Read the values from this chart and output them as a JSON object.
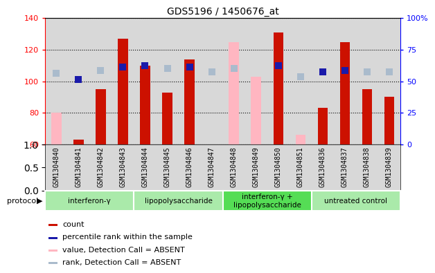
{
  "title": "GDS5196 / 1450676_at",
  "samples": [
    "GSM1304840",
    "GSM1304841",
    "GSM1304842",
    "GSM1304843",
    "GSM1304844",
    "GSM1304845",
    "GSM1304846",
    "GSM1304847",
    "GSM1304848",
    "GSM1304849",
    "GSM1304850",
    "GSM1304851",
    "GSM1304836",
    "GSM1304837",
    "GSM1304838",
    "GSM1304839"
  ],
  "count_values": [
    null,
    63,
    95,
    127,
    110,
    93,
    114,
    null,
    null,
    null,
    131,
    null,
    83,
    125,
    95,
    90
  ],
  "count_absent": [
    80,
    null,
    null,
    null,
    null,
    null,
    null,
    null,
    125,
    103,
    null,
    66,
    null,
    null,
    null,
    null
  ],
  "rank_values": [
    null,
    101,
    null,
    109,
    110,
    null,
    109,
    null,
    null,
    null,
    110,
    null,
    106,
    107,
    null,
    null
  ],
  "rank_absent": [
    105,
    null,
    107,
    null,
    null,
    108,
    null,
    106,
    108,
    null,
    null,
    103,
    null,
    null,
    106,
    106
  ],
  "ylim_left": [
    60,
    140
  ],
  "ylim_right": [
    0,
    100
  ],
  "yticks_left": [
    60,
    80,
    100,
    120,
    140
  ],
  "yticks_right": [
    0,
    25,
    50,
    75,
    100
  ],
  "ytick_labels_right": [
    "0",
    "25",
    "50",
    "75",
    "100%"
  ],
  "groups": [
    {
      "label": "interferon-γ",
      "start": 0,
      "end": 4,
      "color": "#aaeaaa"
    },
    {
      "label": "lipopolysaccharide",
      "start": 4,
      "end": 8,
      "color": "#aaeaaa"
    },
    {
      "label": "interferon-γ +\nlipopolysaccharide",
      "start": 8,
      "end": 12,
      "color": "#55dd55"
    },
    {
      "label": "untreated control",
      "start": 12,
      "end": 16,
      "color": "#aaeaaa"
    }
  ],
  "bar_color_count": "#cc1100",
  "bar_color_absent": "#ffb6c1",
  "dot_color_rank": "#1a1aaa",
  "dot_color_rank_absent": "#aabbcc",
  "bar_width": 0.45,
  "dot_size": 42,
  "plot_bg": "#d8d8d8",
  "tick_label_bg": "#d8d8d8",
  "legend_items": [
    {
      "color": "#cc1100",
      "label": "count"
    },
    {
      "color": "#1a1aaa",
      "label": "percentile rank within the sample"
    },
    {
      "color": "#ffb6c1",
      "label": "value, Detection Call = ABSENT"
    },
    {
      "color": "#aabbcc",
      "label": "rank, Detection Call = ABSENT"
    }
  ]
}
